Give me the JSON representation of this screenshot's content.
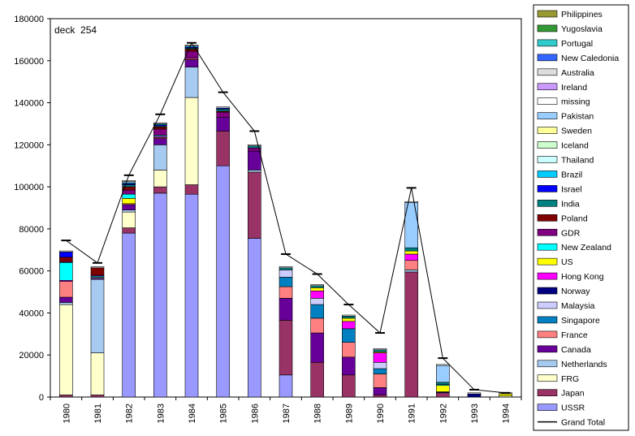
{
  "chart_data": {
    "type": "bar",
    "stacked": true,
    "annotation": "deck  254",
    "ylim": [
      0,
      180000
    ],
    "yticks": [
      0,
      20000,
      40000,
      60000,
      80000,
      100000,
      120000,
      140000,
      160000,
      180000
    ],
    "ytick_labels": [
      "0",
      "20000",
      "40000",
      "60000",
      "80000",
      "100000",
      "120000",
      "140000",
      "160000",
      "180000"
    ],
    "categories": [
      "1980",
      "1981",
      "1982",
      "1983",
      "1984",
      "1985",
      "1986",
      "1987",
      "1988",
      "1989",
      "1990",
      "1991",
      "1992",
      "1993",
      "1994"
    ],
    "legend_position": "right",
    "series": [
      {
        "name": "USSR",
        "color": "#9999ff",
        "values": [
          0,
          0,
          78000,
          97000,
          96500,
          110000,
          75500,
          10500,
          0,
          0,
          0,
          0,
          0,
          0,
          0
        ]
      },
      {
        "name": "Japan",
        "color": "#993366",
        "values": [
          1000,
          1000,
          2500,
          3000,
          4500,
          16500,
          31500,
          26000,
          16500,
          10500,
          1000,
          59500,
          2000,
          0,
          0
        ]
      },
      {
        "name": "FRG",
        "color": "#ffffcc",
        "values": [
          43000,
          20000,
          7500,
          8000,
          41500,
          0,
          0,
          0,
          0,
          0,
          0,
          0,
          0,
          0,
          500
        ]
      },
      {
        "name": "Netherlands",
        "color": "#a6caf0",
        "values": [
          1000,
          35000,
          1000,
          12000,
          14500,
          0,
          1000,
          0,
          0,
          0,
          0,
          1000,
          0,
          0,
          0
        ]
      },
      {
        "name": "Canada",
        "color": "#660099",
        "values": [
          2500,
          500,
          2500,
          3000,
          3500,
          6500,
          9000,
          10500,
          14000,
          8500,
          3500,
          0,
          0,
          0,
          0
        ]
      },
      {
        "name": "France",
        "color": "#ff8080",
        "values": [
          7500,
          0,
          500,
          500,
          500,
          0,
          0,
          5500,
          7000,
          7000,
          6500,
          4500,
          0,
          0,
          0
        ]
      },
      {
        "name": "Singapore",
        "color": "#0080c0",
        "values": [
          0,
          0,
          0,
          0,
          0,
          0,
          0,
          4500,
          6500,
          6500,
          2500,
          0,
          0,
          0,
          0
        ]
      },
      {
        "name": "Malaysia",
        "color": "#ccccff",
        "values": [
          0,
          500,
          0,
          0,
          0,
          0,
          0,
          3500,
          3000,
          0,
          3000,
          0,
          0,
          0,
          0
        ]
      },
      {
        "name": "Norway",
        "color": "#000080",
        "values": [
          0,
          0,
          0,
          0,
          0,
          0,
          0,
          0,
          0,
          0,
          0,
          0,
          500,
          1500,
          0
        ]
      },
      {
        "name": "Hong Kong",
        "color": "#ff00ff",
        "values": [
          500,
          0,
          0,
          500,
          500,
          0,
          0,
          0,
          3500,
          3500,
          4500,
          3000,
          0,
          0,
          0
        ]
      },
      {
        "name": "US",
        "color": "#ffff00",
        "values": [
          0,
          0,
          2500,
          0,
          0,
          0,
          0,
          0,
          1500,
          1500,
          500,
          1500,
          3000,
          0,
          1000
        ]
      },
      {
        "name": "New Zealand",
        "color": "#00ffff",
        "values": [
          8500,
          500,
          2000,
          500,
          0,
          0,
          0,
          0,
          0,
          0,
          0,
          0,
          500,
          0,
          0
        ]
      },
      {
        "name": "GDR",
        "color": "#800080",
        "values": [
          500,
          500,
          2000,
          3000,
          3000,
          2500,
          1500,
          0,
          0,
          0,
          0,
          0,
          0,
          0,
          0
        ]
      },
      {
        "name": "Poland",
        "color": "#800000",
        "values": [
          2000,
          3500,
          1500,
          1000,
          1000,
          500,
          0,
          0,
          0,
          0,
          0,
          0,
          0,
          0,
          0
        ]
      },
      {
        "name": "India",
        "color": "#008080",
        "values": [
          0,
          0,
          1000,
          500,
          500,
          1000,
          1000,
          1000,
          1000,
          1000,
          1000,
          1500,
          1000,
          0,
          0
        ]
      },
      {
        "name": "Israel",
        "color": "#0000ff",
        "values": [
          2500,
          0,
          500,
          500,
          500,
          500,
          0,
          0,
          0,
          0,
          0,
          0,
          0,
          0,
          0
        ]
      },
      {
        "name": "Brazil",
        "color": "#00ccff",
        "values": [
          0,
          0,
          500,
          500,
          500,
          0,
          0,
          0,
          0,
          0,
          0,
          0,
          0,
          0,
          0
        ]
      },
      {
        "name": "Thailand",
        "color": "#ccffff",
        "values": [
          0,
          0,
          500,
          0,
          0,
          0,
          0,
          0,
          0,
          0,
          0,
          0,
          0,
          0,
          0
        ]
      },
      {
        "name": "Iceland",
        "color": "#ccffcc",
        "values": [
          0,
          0,
          0,
          0,
          0,
          0,
          0,
          0,
          0,
          0,
          0,
          0,
          0,
          0,
          0
        ]
      },
      {
        "name": "Sweden",
        "color": "#ffff99",
        "values": [
          0,
          0,
          0,
          0,
          0,
          0,
          0,
          0,
          0,
          0,
          0,
          0,
          0,
          0,
          0
        ]
      },
      {
        "name": "Pakistan",
        "color": "#99ccff",
        "values": [
          0,
          0,
          0,
          0,
          0,
          0,
          0,
          0,
          0,
          0,
          0,
          21500,
          8000,
          0,
          0
        ]
      },
      {
        "name": "missing",
        "color": "#ffffff",
        "values": [
          500,
          500,
          500,
          500,
          500,
          500,
          500,
          500,
          500,
          500,
          500,
          500,
          500,
          500,
          500
        ]
      },
      {
        "name": "Ireland",
        "color": "#cc99ff",
        "values": [
          0,
          0,
          0,
          0,
          0,
          0,
          0,
          0,
          0,
          0,
          0,
          0,
          0,
          0,
          0
        ]
      },
      {
        "name": "Australia",
        "color": "#dddddd",
        "values": [
          0,
          0,
          0,
          0,
          0,
          0,
          0,
          0,
          0,
          0,
          0,
          0,
          0,
          0,
          0
        ]
      },
      {
        "name": "New Caledonia",
        "color": "#3366ff",
        "values": [
          0,
          0,
          0,
          0,
          0,
          0,
          0,
          0,
          0,
          0,
          0,
          0,
          0,
          0,
          0
        ]
      },
      {
        "name": "Portugal",
        "color": "#33cccc",
        "values": [
          0,
          0,
          0,
          0,
          0,
          0,
          0,
          0,
          0,
          0,
          0,
          0,
          0,
          0,
          0
        ]
      },
      {
        "name": "Yugoslavia",
        "color": "#339933",
        "values": [
          0,
          0,
          0,
          0,
          0,
          0,
          0,
          0,
          0,
          0,
          0,
          0,
          0,
          0,
          0
        ]
      },
      {
        "name": "Philippines",
        "color": "#999933",
        "values": [
          0,
          0,
          0,
          0,
          0,
          0,
          0,
          0,
          0,
          0,
          0,
          0,
          0,
          0,
          0
        ]
      }
    ],
    "grand_total": {
      "name": "Grand Total",
      "color": "#000000",
      "values": [
        74500,
        63800,
        105500,
        134500,
        168500,
        145000,
        126500,
        68000,
        58500,
        44000,
        30500,
        99500,
        18500,
        3500,
        2000
      ]
    },
    "legend_order": [
      "Philippines",
      "Yugoslavia",
      "Portugal",
      "New Caledonia",
      "Australia",
      "Ireland",
      "missing",
      "Pakistan",
      "Sweden",
      "Iceland",
      "Thailand",
      "Brazil",
      "Israel",
      "India",
      "Poland",
      "GDR",
      "New Zealand",
      "US",
      "Hong Kong",
      "Norway",
      "Malaysia",
      "Singapore",
      "France",
      "Canada",
      "Netherlands",
      "FRG",
      "Japan",
      "USSR",
      "Grand Total"
    ]
  }
}
